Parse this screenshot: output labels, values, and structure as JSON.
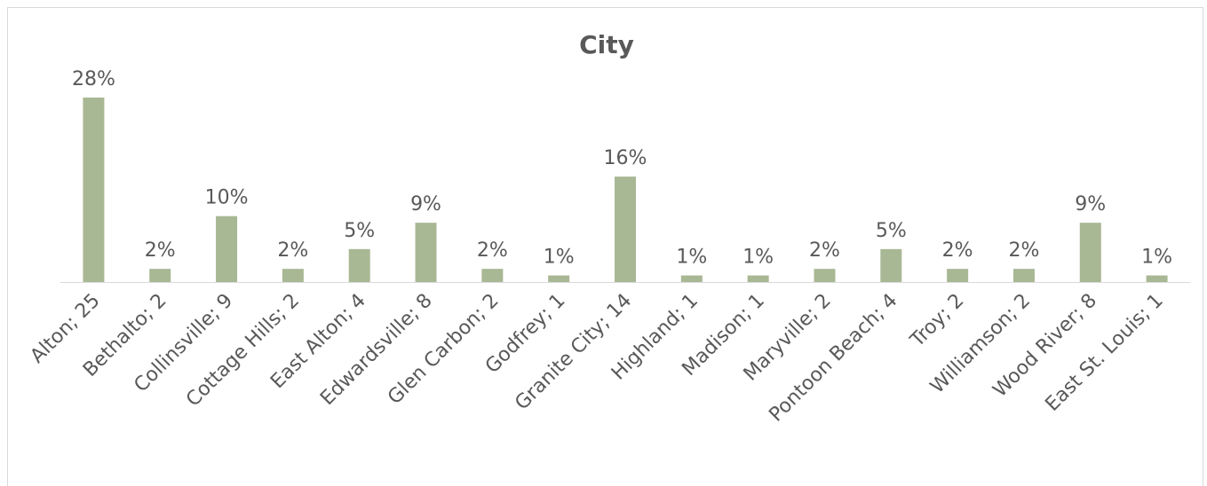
{
  "chart_data": {
    "type": "bar",
    "title": "City",
    "categories": [
      "Alton; 25",
      "Bethalto; 2",
      "Collinsville; 9",
      "Cottage Hills; 2",
      "East Alton; 4",
      "Edwardsville; 8",
      "Glen Carbon; 2",
      "Godfrey; 1",
      "Granite City; 14",
      "Highland; 1",
      "Madison; 1",
      "Maryville; 2",
      "Pontoon Beach; 4",
      "Troy; 2",
      "Williamson; 2",
      "Wood River; 8",
      "East St. Louis; 1"
    ],
    "values": [
      28,
      2,
      10,
      2,
      5,
      9,
      2,
      1,
      16,
      1,
      1,
      2,
      5,
      2,
      2,
      9,
      1
    ],
    "value_labels": [
      "28%",
      "2%",
      "10%",
      "2%",
      "5%",
      "9%",
      "2%",
      "1%",
      "16%",
      "1%",
      "1%",
      "2%",
      "5%",
      "2%",
      "2%",
      "9%",
      "1%"
    ],
    "color": "#a9b894"
  }
}
